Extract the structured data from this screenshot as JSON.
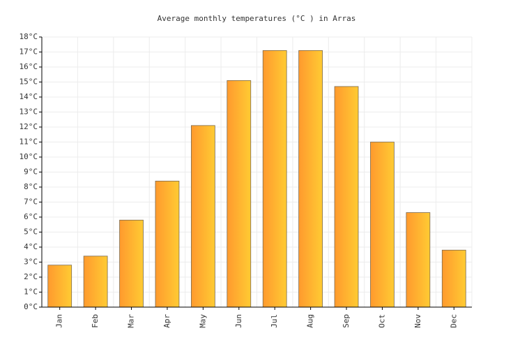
{
  "chart_data": {
    "type": "bar",
    "title": "Average monthly temperatures (°C ) in Arras",
    "categories": [
      "Jan",
      "Feb",
      "Mar",
      "Apr",
      "May",
      "Jun",
      "Jul",
      "Aug",
      "Sep",
      "Oct",
      "Nov",
      "Dec"
    ],
    "values": [
      2.8,
      3.4,
      5.8,
      8.4,
      12.1,
      15.1,
      17.1,
      17.1,
      14.7,
      11.0,
      6.3,
      3.8
    ],
    "color": [
      "#ff9a2e",
      "#ffcb33"
    ],
    "ylim": [
      0,
      18
    ],
    "yticks": [
      {
        "value": 0,
        "label": "0°C"
      },
      {
        "value": 1,
        "label": "1°C"
      },
      {
        "value": 2,
        "label": "2°C"
      },
      {
        "value": 3,
        "label": "3°C"
      },
      {
        "value": 4,
        "label": "4°C"
      },
      {
        "value": 5,
        "label": "5°C"
      },
      {
        "value": 6,
        "label": "6°C"
      },
      {
        "value": 7,
        "label": "7°C"
      },
      {
        "value": 8,
        "label": "8°C"
      },
      {
        "value": 9,
        "label": "9°C"
      },
      {
        "value": 10,
        "label": "10°C"
      },
      {
        "value": 11,
        "label": "11°C"
      },
      {
        "value": 12,
        "label": "12°C"
      },
      {
        "value": 13,
        "label": "13°C"
      },
      {
        "value": 14,
        "label": "14°C"
      },
      {
        "value": 15,
        "label": "15°C"
      },
      {
        "value": 16,
        "label": "16°C"
      },
      {
        "value": 17,
        "label": "17°C"
      },
      {
        "value": 18,
        "label": "18°C"
      }
    ],
    "grid": true
  }
}
